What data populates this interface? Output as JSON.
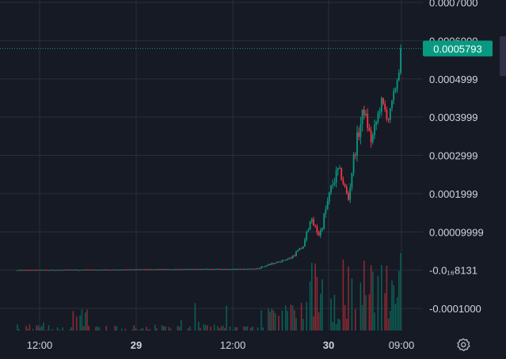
{
  "chart_data": {
    "type": "candlestick",
    "price_axis": {
      "labels": [
        "0.0007000",
        "0.0006000",
        "0.0004999",
        "0.0003999",
        "0.0002999",
        "0.0001999",
        "0.00009999",
        "-0.0₁₆8131",
        "-0.0001000"
      ],
      "values": [
        0.0007,
        0.0006,
        0.0004999,
        0.0003999,
        0.0002999,
        0.0001999,
        9.999e-05,
        0,
        -0.0001
      ],
      "ylim": [
        -0.00012,
        0.0007
      ]
    },
    "time_axis": {
      "labels": [
        {
          "text": "12:00",
          "bold": false
        },
        {
          "text": "29",
          "bold": true
        },
        {
          "text": "12:00",
          "bold": false
        },
        {
          "text": "30",
          "bold": true
        },
        {
          "text": "09:00",
          "bold": false
        }
      ]
    },
    "last_price": {
      "label": "0.0005793",
      "value": 0.0005793,
      "color": "#089981"
    },
    "grid": true,
    "colors": {
      "background": "#161a25",
      "grid": "#2a2e39",
      "up": "#089981",
      "down": "#f23645",
      "volume_up": "#0b5e53",
      "volume_down": "#8a2a32"
    },
    "segments": [
      {
        "from": 0.0,
        "to": 0.62,
        "start": 0.0,
        "end": 3.5e-06,
        "noise": 1.2e-06
      },
      {
        "from": 0.62,
        "to": 0.71,
        "start": 3.5e-06,
        "end": 3.2e-05,
        "noise": 4e-06
      },
      {
        "from": 0.71,
        "to": 0.745,
        "start": 3.2e-05,
        "end": 6.5e-05,
        "noise": 8e-06
      },
      {
        "from": 0.745,
        "to": 0.76,
        "start": 6.5e-05,
        "end": 0.000135,
        "noise": 2e-05
      },
      {
        "from": 0.76,
        "to": 0.785,
        "start": 0.000135,
        "end": 9e-05,
        "noise": 1.5e-05
      },
      {
        "from": 0.785,
        "to": 0.815,
        "start": 9e-05,
        "end": 0.000215,
        "noise": 2.5e-05
      },
      {
        "from": 0.815,
        "to": 0.835,
        "start": 0.000215,
        "end": 0.000265,
        "noise": 3e-05
      },
      {
        "from": 0.835,
        "to": 0.86,
        "start": 0.000265,
        "end": 0.000185,
        "noise": 2e-05
      },
      {
        "from": 0.86,
        "to": 0.875,
        "start": 0.000185,
        "end": 0.000305,
        "noise": 2.5e-05
      },
      {
        "from": 0.875,
        "to": 0.9,
        "start": 0.000305,
        "end": 0.00042,
        "noise": 4e-05
      },
      {
        "from": 0.9,
        "to": 0.92,
        "start": 0.00042,
        "end": 0.000335,
        "noise": 3e-05
      },
      {
        "from": 0.92,
        "to": 0.945,
        "start": 0.000335,
        "end": 0.00044,
        "noise": 3e-05
      },
      {
        "from": 0.945,
        "to": 0.965,
        "start": 0.00044,
        "end": 0.000395,
        "noise": 3e-05
      },
      {
        "from": 0.965,
        "to": 0.99,
        "start": 0.000395,
        "end": 0.000515,
        "noise": 2.5e-05
      },
      {
        "from": 0.99,
        "to": 1.0,
        "start": 0.000515,
        "end": 0.0005793,
        "noise": 2e-05
      }
    ]
  }
}
